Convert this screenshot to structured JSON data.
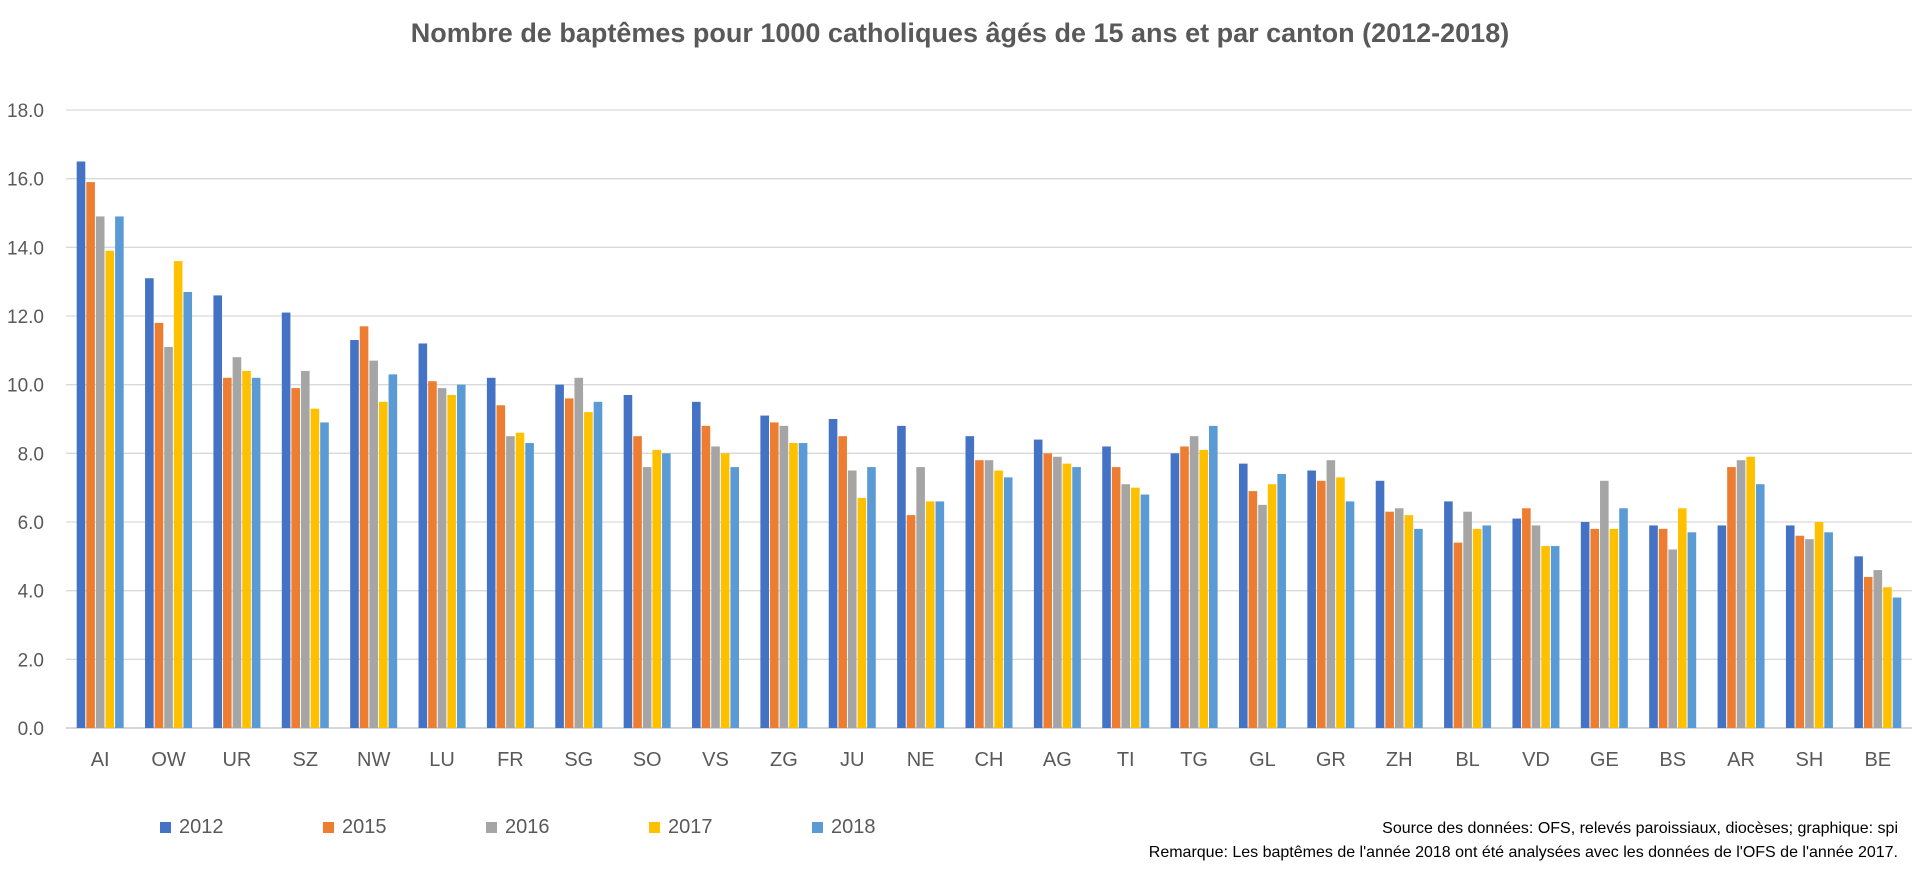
{
  "chart_data": {
    "type": "bar",
    "title": "Nombre de baptêmes pour 1000 catholiques âgés de 15 ans et par canton (2012-2018)",
    "xlabel": "",
    "ylabel": "",
    "ylim": [
      0,
      18
    ],
    "yticks": [
      "0.0",
      "2.0",
      "4.0",
      "6.0",
      "8.0",
      "10.0",
      "12.0",
      "14.0",
      "16.0",
      "18.0"
    ],
    "grid": true,
    "legend_position": "bottom-left",
    "categories": [
      "AI",
      "OW",
      "UR",
      "SZ",
      "NW",
      "LU",
      "FR",
      "SG",
      "SO",
      "VS",
      "ZG",
      "JU",
      "NE",
      "CH",
      "AG",
      "TI",
      "TG",
      "GL",
      "GR",
      "ZH",
      "BL",
      "VD",
      "GE",
      "BS",
      "AR",
      "SH",
      "BE"
    ],
    "series": [
      {
        "name": "2012",
        "color": "#4472C4",
        "values": [
          16.5,
          13.1,
          12.6,
          12.1,
          11.3,
          11.2,
          10.2,
          10.0,
          9.7,
          9.5,
          9.1,
          9.0,
          8.8,
          8.5,
          8.4,
          8.2,
          8.0,
          7.7,
          7.5,
          7.2,
          6.6,
          6.1,
          6.0,
          5.9,
          5.9,
          5.9,
          5.0
        ]
      },
      {
        "name": "2015",
        "color": "#ED7D31",
        "values": [
          15.9,
          11.8,
          10.2,
          9.9,
          11.7,
          10.1,
          9.4,
          9.6,
          8.5,
          8.8,
          8.9,
          8.5,
          6.2,
          7.8,
          8.0,
          7.6,
          8.2,
          6.9,
          7.2,
          6.3,
          5.4,
          6.4,
          5.8,
          5.8,
          7.6,
          5.6,
          4.4
        ]
      },
      {
        "name": "2016",
        "color": "#A5A5A5",
        "values": [
          14.9,
          11.1,
          10.8,
          10.4,
          10.7,
          9.9,
          8.5,
          10.2,
          7.6,
          8.2,
          8.8,
          7.5,
          7.6,
          7.8,
          7.9,
          7.1,
          8.5,
          6.5,
          7.8,
          6.4,
          6.3,
          5.9,
          7.2,
          5.2,
          7.8,
          5.5,
          4.6
        ]
      },
      {
        "name": "2017",
        "color": "#FFC000",
        "values": [
          13.9,
          13.6,
          10.4,
          9.3,
          9.5,
          9.7,
          8.6,
          9.2,
          8.1,
          8.0,
          8.3,
          6.7,
          6.6,
          7.5,
          7.7,
          7.0,
          8.1,
          7.1,
          7.3,
          6.2,
          5.8,
          5.3,
          5.8,
          6.4,
          7.9,
          6.0,
          4.1
        ]
      },
      {
        "name": "2018",
        "color": "#5B9BD5",
        "values": [
          14.9,
          12.7,
          10.2,
          8.9,
          10.3,
          10.0,
          8.3,
          9.5,
          8.0,
          7.6,
          8.3,
          7.6,
          6.6,
          7.3,
          7.6,
          6.8,
          8.8,
          7.4,
          6.6,
          5.8,
          5.9,
          5.3,
          6.4,
          5.7,
          7.1,
          5.7,
          3.8
        ]
      }
    ]
  },
  "notes": {
    "source": "Source des données: OFS, relevés paroissiaux, diocèses; graphique: spi",
    "remark": "Remarque: Les baptêmes de l'année 2018 ont été analysées avec les données de l'OFS de l'année 2017."
  }
}
